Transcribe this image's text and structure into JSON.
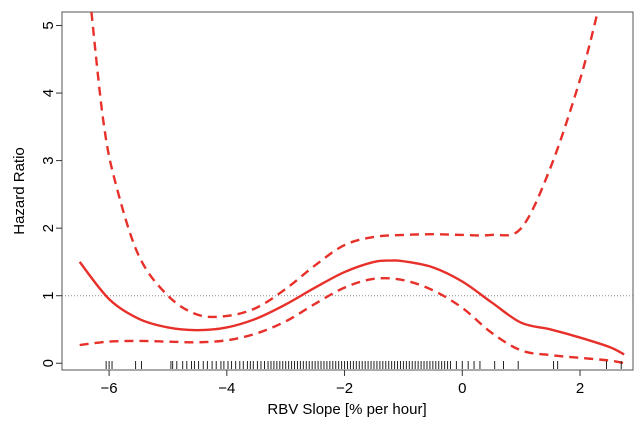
{
  "chart_data": {
    "type": "line",
    "title": "",
    "xlabel": "RBV Slope [% per hour]",
    "ylabel": "Hazard Ratio",
    "xlim": [
      -6.8,
      2.9
    ],
    "ylim": [
      -0.1,
      5.2
    ],
    "x_ticks": [
      -6,
      -4,
      -2,
      0,
      2
    ],
    "x_tick_labels": [
      "−6",
      "−4",
      "−2",
      "0",
      "2"
    ],
    "y_ticks": [
      0,
      1,
      2,
      3,
      4,
      5
    ],
    "y_tick_labels": [
      "0",
      "1",
      "2",
      "3",
      "4",
      "5"
    ],
    "reference_line": {
      "y": 1,
      "style": "dotted",
      "color": "#8c8c8c"
    },
    "grid": false,
    "legend": "none",
    "series": [
      {
        "role": "estimate",
        "style": "solid",
        "color": "#e8302a",
        "x": [
          -6.5,
          -6.0,
          -5.5,
          -5.0,
          -4.5,
          -4.0,
          -3.5,
          -3.0,
          -2.5,
          -2.0,
          -1.5,
          -1.2,
          -1.0,
          -0.5,
          0.0,
          0.5,
          1.0,
          1.5,
          2.0,
          2.5,
          2.75
        ],
        "y": [
          1.5,
          0.95,
          0.66,
          0.53,
          0.49,
          0.53,
          0.66,
          0.87,
          1.12,
          1.35,
          1.5,
          1.52,
          1.51,
          1.42,
          1.21,
          0.9,
          0.6,
          0.5,
          0.38,
          0.24,
          0.13
        ]
      },
      {
        "role": "upper_ci",
        "style": "dashed",
        "color": "#e8302a",
        "x": [
          -6.3,
          -6.1,
          -5.9,
          -5.5,
          -5.0,
          -4.5,
          -4.0,
          -3.5,
          -3.0,
          -2.5,
          -2.0,
          -1.5,
          -1.0,
          -0.5,
          0.0,
          0.5,
          1.0,
          1.5,
          2.0,
          2.3
        ],
        "y": [
          5.2,
          3.6,
          2.7,
          1.6,
          1.0,
          0.72,
          0.7,
          0.82,
          1.1,
          1.45,
          1.75,
          1.87,
          1.9,
          1.91,
          1.9,
          1.9,
          2.0,
          2.9,
          4.2,
          5.2
        ]
      },
      {
        "role": "lower_ci",
        "style": "dashed",
        "color": "#e8302a",
        "x": [
          -6.5,
          -6.0,
          -5.5,
          -5.0,
          -4.5,
          -4.0,
          -3.5,
          -3.0,
          -2.5,
          -2.0,
          -1.5,
          -1.0,
          -0.5,
          0.0,
          0.5,
          1.0,
          1.5,
          2.0,
          2.5,
          2.75
        ],
        "y": [
          0.27,
          0.32,
          0.33,
          0.32,
          0.31,
          0.34,
          0.44,
          0.62,
          0.88,
          1.12,
          1.25,
          1.23,
          1.08,
          0.82,
          0.45,
          0.19,
          0.12,
          0.08,
          0.04,
          0.0
        ]
      }
    ],
    "rug": [
      -6.05,
      -6.0,
      -5.95,
      -5.55,
      -5.45,
      -4.95,
      -4.92,
      -4.85,
      -4.75,
      -4.68,
      -4.6,
      -4.55,
      -4.48,
      -4.4,
      -4.33,
      -4.25,
      -4.18,
      -4.1,
      -4.05,
      -3.98,
      -3.92,
      -3.85,
      -3.78,
      -3.72,
      -3.65,
      -3.6,
      -3.55,
      -3.48,
      -3.42,
      -3.36,
      -3.3,
      -3.25,
      -3.2,
      -3.15,
      -3.1,
      -3.05,
      -3.0,
      -2.95,
      -2.9,
      -2.85,
      -2.8,
      -2.75,
      -2.7,
      -2.65,
      -2.6,
      -2.55,
      -2.5,
      -2.45,
      -2.4,
      -2.35,
      -2.3,
      -2.25,
      -2.2,
      -2.15,
      -2.1,
      -2.05,
      -2.0,
      -1.95,
      -1.9,
      -1.85,
      -1.8,
      -1.75,
      -1.7,
      -1.65,
      -1.6,
      -1.55,
      -1.5,
      -1.45,
      -1.4,
      -1.35,
      -1.3,
      -1.25,
      -1.2,
      -1.15,
      -1.1,
      -1.05,
      -1.0,
      -0.95,
      -0.9,
      -0.85,
      -0.8,
      -0.75,
      -0.7,
      -0.65,
      -0.6,
      -0.55,
      -0.5,
      -0.45,
      -0.4,
      -0.35,
      -0.3,
      -0.25,
      -0.2,
      -0.1,
      0.0,
      0.1,
      0.2,
      0.3,
      0.55,
      0.7,
      0.95,
      1.55,
      1.62,
      2.45,
      2.7
    ]
  }
}
